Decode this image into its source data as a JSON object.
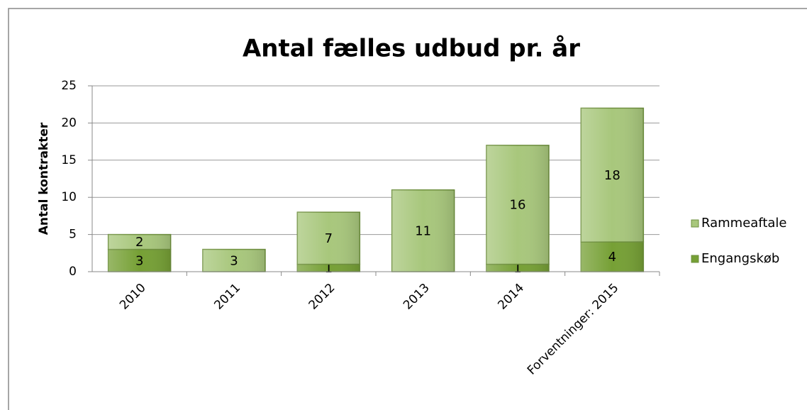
{
  "chart_data": {
    "type": "stacked_bar",
    "title": "Antal fælles udbud pr. år",
    "y_label": "Antal kontrakter",
    "categories": [
      "2010",
      "2011",
      "2012",
      "2013",
      "2014",
      "Forventninger: 2015"
    ],
    "series": [
      {
        "name": "Engangskøb",
        "color": "#76a035",
        "values": [
          3,
          null,
          1,
          null,
          1,
          4
        ]
      },
      {
        "name": "Rammeaftale",
        "color": "#a8c77c",
        "values": [
          2,
          3,
          7,
          11,
          16,
          18
        ]
      }
    ],
    "ylim": [
      0,
      25
    ],
    "yticks": [
      0,
      5,
      10,
      15,
      20,
      25
    ],
    "grid": true,
    "legend": "right"
  }
}
